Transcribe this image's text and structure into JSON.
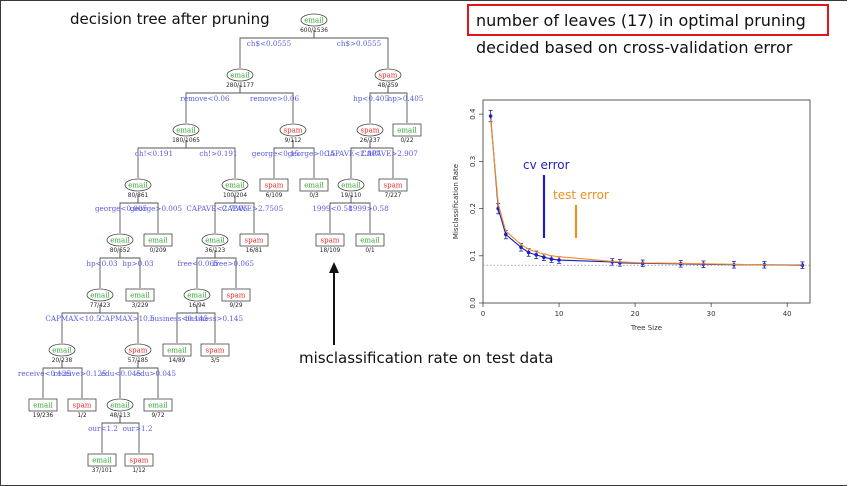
{
  "slide": {
    "tree_title": "decision tree after pruning",
    "note_line1": "number of leaves (17) in optimal pruning",
    "note_line2": "decided based on cross-validation error",
    "bottom_caption": "misclassification rate on test data"
  },
  "tree": {
    "nodes": [
      {
        "id": "root",
        "label": "email",
        "counts": "600/1536",
        "kind": "inner"
      },
      {
        "id": "n1",
        "label": "email",
        "counts": "280/1177",
        "kind": "inner"
      },
      {
        "id": "n2",
        "label": "spam",
        "counts": "48/359",
        "kind": "inner"
      },
      {
        "id": "n3",
        "label": "email",
        "counts": "180/1065",
        "kind": "inner"
      },
      {
        "id": "n4",
        "label": "spam",
        "counts": "9/112",
        "kind": "inner"
      },
      {
        "id": "n5",
        "label": "spam",
        "counts": "26/337",
        "kind": "inner"
      },
      {
        "id": "n6",
        "label": "email",
        "counts": "0/22",
        "kind": "leaf"
      },
      {
        "id": "n7",
        "label": "email",
        "counts": "80/861",
        "kind": "inner"
      },
      {
        "id": "n8",
        "label": "email",
        "counts": "100/204",
        "kind": "inner"
      },
      {
        "id": "n9",
        "label": "spam",
        "counts": "6/109",
        "kind": "leaf"
      },
      {
        "id": "n10",
        "label": "email",
        "counts": "0/3",
        "kind": "leaf"
      },
      {
        "id": "n11",
        "label": "email",
        "counts": "19/110",
        "kind": "inner"
      },
      {
        "id": "n12",
        "label": "spam",
        "counts": "7/227",
        "kind": "leaf"
      },
      {
        "id": "n13",
        "label": "email",
        "counts": "80/652",
        "kind": "inner"
      },
      {
        "id": "n14",
        "label": "email",
        "counts": "0/209",
        "kind": "leaf"
      },
      {
        "id": "n15",
        "label": "email",
        "counts": "36/123",
        "kind": "inner"
      },
      {
        "id": "n16",
        "label": "spam",
        "counts": "16/81",
        "kind": "leaf"
      },
      {
        "id": "n17",
        "label": "spam",
        "counts": "18/109",
        "kind": "leaf"
      },
      {
        "id": "n18",
        "label": "email",
        "counts": "0/1",
        "kind": "leaf"
      },
      {
        "id": "n19",
        "label": "email",
        "counts": "77/423",
        "kind": "inner"
      },
      {
        "id": "n20",
        "label": "email",
        "counts": "3/229",
        "kind": "leaf"
      },
      {
        "id": "n21",
        "label": "email",
        "counts": "16/94",
        "kind": "inner"
      },
      {
        "id": "n22",
        "label": "spam",
        "counts": "9/29",
        "kind": "leaf"
      },
      {
        "id": "n23",
        "label": "email",
        "counts": "20/238",
        "kind": "inner"
      },
      {
        "id": "n24",
        "label": "spam",
        "counts": "57/185",
        "kind": "inner"
      },
      {
        "id": "n25",
        "label": "email",
        "counts": "14/89",
        "kind": "leaf"
      },
      {
        "id": "n26",
        "label": "spam",
        "counts": "3/5",
        "kind": "leaf"
      },
      {
        "id": "n27",
        "label": "email",
        "counts": "19/236",
        "kind": "leaf"
      },
      {
        "id": "n28",
        "label": "spam",
        "counts": "1/2",
        "kind": "leaf"
      },
      {
        "id": "n29",
        "label": "email",
        "counts": "48/113",
        "kind": "inner"
      },
      {
        "id": "n30",
        "label": "email",
        "counts": "9/72",
        "kind": "leaf"
      },
      {
        "id": "n31",
        "label": "email",
        "counts": "37/101",
        "kind": "leaf"
      },
      {
        "id": "n32",
        "label": "spam",
        "counts": "1/12",
        "kind": "leaf"
      }
    ],
    "edges": [
      {
        "from": "root",
        "to": "n1",
        "label": "ch$<0.0555"
      },
      {
        "from": "root",
        "to": "n2",
        "label": "ch$>0.0555"
      },
      {
        "from": "n1",
        "to": "n3",
        "label": "remove<0.06"
      },
      {
        "from": "n1",
        "to": "n4",
        "label": "remove>0.06"
      },
      {
        "from": "n2",
        "to": "n5",
        "label": "hp<0.405"
      },
      {
        "from": "n2",
        "to": "n6",
        "label": "hp>0.405"
      },
      {
        "from": "n3",
        "to": "n7",
        "label": "ch!<0.191"
      },
      {
        "from": "n3",
        "to": "n8",
        "label": "ch!>0.191"
      },
      {
        "from": "n4",
        "to": "n9",
        "label": "george<0.15"
      },
      {
        "from": "n4",
        "to": "n10",
        "label": "george>0.15"
      },
      {
        "from": "n5",
        "to": "n11",
        "label": "CAPAVE<2.907"
      },
      {
        "from": "n5",
        "to": "n12",
        "label": "CAPAVE>2.907"
      },
      {
        "from": "n7",
        "to": "n13",
        "label": "george<0.005"
      },
      {
        "from": "n7",
        "to": "n14",
        "label": "george>0.005"
      },
      {
        "from": "n8",
        "to": "n15",
        "label": "CAPAVE<2.7505"
      },
      {
        "from": "n8",
        "to": "n16",
        "label": "CAPAVE>2.7505"
      },
      {
        "from": "n11",
        "to": "n17",
        "label": "1999<0.58"
      },
      {
        "from": "n11",
        "to": "n18",
        "label": "1999>0.58"
      },
      {
        "from": "n13",
        "to": "n19",
        "label": "hp<0.03"
      },
      {
        "from": "n13",
        "to": "n20",
        "label": "hp>0.03"
      },
      {
        "from": "n15",
        "to": "n21",
        "label": "free<0.065"
      },
      {
        "from": "n15",
        "to": "n22",
        "label": "free>0.065"
      },
      {
        "from": "n19",
        "to": "n23",
        "label": "CAPMAX<10.5"
      },
      {
        "from": "n19",
        "to": "n24",
        "label": "CAPMAX>10.5"
      },
      {
        "from": "n21",
        "to": "n25",
        "label": "business<0.145"
      },
      {
        "from": "n21",
        "to": "n26",
        "label": "business>0.145"
      },
      {
        "from": "n23",
        "to": "n27",
        "label": "receive<0.125"
      },
      {
        "from": "n23",
        "to": "n28",
        "label": "receive>0.125"
      },
      {
        "from": "n24",
        "to": "n29",
        "label": "edu<0.045"
      },
      {
        "from": "n24",
        "to": "n30",
        "label": "edu>0.045"
      },
      {
        "from": "n29",
        "to": "n31",
        "label": "our<1.2"
      },
      {
        "from": "n29",
        "to": "n32",
        "label": "our>1.2"
      }
    ]
  },
  "colors": {
    "highlight_box": "#e3141b",
    "cv_error": "#1f1fbf",
    "test_error": "#f0901e",
    "email_text": "#2fa82f",
    "spam_text": "#e0302a",
    "split_text": "#5a5ae0",
    "arrow": "#111111"
  },
  "chart_data": {
    "type": "line",
    "xlabel": "Tree Size",
    "ylabel": "Misclassification Rate",
    "xlim": [
      0,
      43
    ],
    "ylim": [
      0,
      0.43
    ],
    "xticks": [
      0,
      10,
      20,
      30,
      40
    ],
    "yticks": [
      0.0,
      0.1,
      0.2,
      0.3,
      0.4
    ],
    "grid": false,
    "annotations": {
      "cv": "cv error",
      "test": "test error"
    },
    "series": [
      {
        "name": "cv error",
        "color": "#1f1fbf",
        "x": [
          1,
          2,
          3,
          5,
          6,
          7,
          8,
          9,
          10,
          17,
          18,
          21,
          26,
          29,
          33,
          37,
          42
        ],
        "y": [
          0.396,
          0.2,
          0.145,
          0.118,
          0.107,
          0.102,
          0.097,
          0.093,
          0.091,
          0.087,
          0.085,
          0.084,
          0.083,
          0.082,
          0.081,
          0.081,
          0.08
        ],
        "err": [
          0.012,
          0.011,
          0.009,
          0.008,
          0.008,
          0.008,
          0.007,
          0.007,
          0.007,
          0.007,
          0.007,
          0.007,
          0.007,
          0.007,
          0.007,
          0.007,
          0.007
        ]
      },
      {
        "name": "test error",
        "color": "#f0901e",
        "x": [
          1,
          2,
          3,
          5,
          6,
          7,
          8,
          9,
          10,
          17,
          18,
          21,
          26,
          29,
          33,
          37,
          42
        ],
        "y": [
          0.39,
          0.21,
          0.152,
          0.124,
          0.114,
          0.108,
          0.104,
          0.1,
          0.098,
          0.088,
          0.087,
          0.085,
          0.084,
          0.083,
          0.082,
          0.081,
          0.081
        ]
      },
      {
        "name": "reference",
        "style": "dotted",
        "color": "#888888",
        "x": [
          0,
          43
        ],
        "y": [
          0.08,
          0.08
        ]
      }
    ]
  }
}
